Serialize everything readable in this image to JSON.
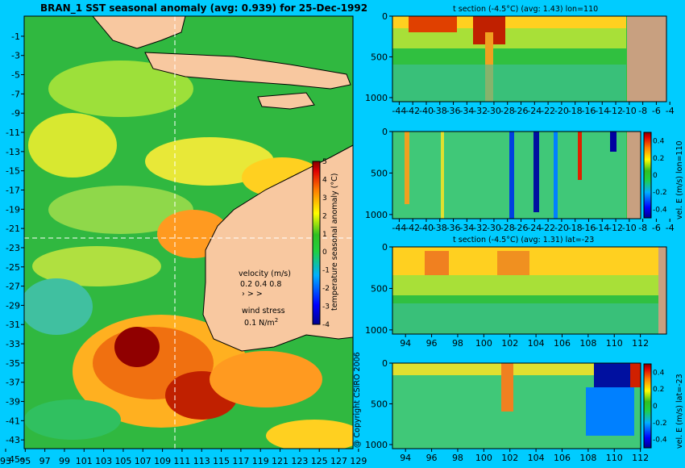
{
  "chart_data": [
    {
      "type": "heatmap",
      "title": "BRAN_1 SST seasonal anomaly (avg: 0.939) for 25-Dec-1992",
      "x_ticks": [
        "93",
        "95",
        "97",
        "99",
        "101",
        "103",
        "105",
        "107",
        "109",
        "111",
        "113",
        "115",
        "117",
        "119",
        "121",
        "123",
        "125",
        "127",
        "129"
      ],
      "y_ticks": [
        "-1",
        "-3",
        "-5",
        "-7",
        "-9",
        "-11",
        "-13",
        "-15",
        "-17",
        "-19",
        "-21",
        "-23",
        "-25",
        "-27",
        "-29",
        "-31",
        "-33",
        "-35",
        "-37",
        "-39",
        "-41",
        "-43",
        "-45"
      ],
      "xlim": [
        93,
        130
      ],
      "ylim": [
        -45,
        0
      ],
      "crosshair": {
        "lon": 110,
        "lat": -23
      },
      "colorbar": {
        "label": "temperature seasonal anomaly (°C)",
        "ticks": [
          "5",
          "4",
          "3",
          "2",
          "1",
          "0",
          "-1",
          "-2",
          "-3",
          "-4"
        ],
        "range": [
          -4,
          5
        ]
      },
      "velocity_legend": {
        "title": "velocity (m/s)",
        "values": "0.2 0.4 0.8"
      },
      "wind_legend": {
        "title": "wind stress",
        "value": "0.1 N/m",
        "sup": "2"
      },
      "copyright": "@ Copyright CSIRO 2006"
    },
    {
      "type": "heatmap",
      "title": "t section (-4.5°C) (avg: 1.43) lon=110",
      "x_ticks": [
        "-44",
        "-42",
        "-40",
        "-38",
        "-36",
        "-34",
        "-32",
        "-30",
        "-28",
        "-26",
        "-24",
        "-22",
        "-20",
        "-18",
        "-16",
        "-14",
        "-12",
        "-10",
        "-8",
        "-6",
        "-4"
      ],
      "y_ticks": [
        "0",
        "500",
        "1000"
      ],
      "xlim": [
        -45,
        -2
      ],
      "ylim": [
        1050,
        0
      ]
    },
    {
      "type": "heatmap",
      "title": "",
      "x_ticks": [
        "-44",
        "-42",
        "-40",
        "-38",
        "-36",
        "-34",
        "-32",
        "-30",
        "-28",
        "-26",
        "-24",
        "-22",
        "-20",
        "-18",
        "-16",
        "-14",
        "-12",
        "-10",
        "-8",
        "-6",
        "-4"
      ],
      "y_ticks": [
        "0",
        "500",
        "1000"
      ],
      "xlim": [
        -45,
        -2
      ],
      "ylim": [
        1050,
        0
      ],
      "colorbar": {
        "label": "vel. E (m/s) lon=110",
        "ticks": [
          "0.4",
          "0.2",
          "0",
          "-0.2",
          "-0.4"
        ],
        "range": [
          -0.5,
          0.5
        ]
      }
    },
    {
      "type": "heatmap",
      "title": "t section (-4.5°C) (avg: 1.31) lat=-23",
      "x_ticks": [
        "94",
        "96",
        "98",
        "100",
        "102",
        "104",
        "106",
        "108",
        "110",
        "112"
      ],
      "y_ticks": [
        "0",
        "500",
        "1000"
      ],
      "xlim": [
        93,
        114
      ],
      "ylim": [
        1050,
        0
      ]
    },
    {
      "type": "heatmap",
      "title": "",
      "x_ticks": [
        "94",
        "96",
        "98",
        "100",
        "102",
        "104",
        "106",
        "108",
        "110",
        "112"
      ],
      "y_ticks": [
        "0",
        "500",
        "1000"
      ],
      "xlim": [
        93,
        114
      ],
      "ylim": [
        1050,
        0
      ],
      "colorbar": {
        "label": "vel. E (m/s) lat=-23",
        "ticks": [
          "0.4",
          "0.2",
          "0",
          "-0.2",
          "-0.4"
        ],
        "range": [
          -0.5,
          0.5
        ]
      }
    }
  ]
}
